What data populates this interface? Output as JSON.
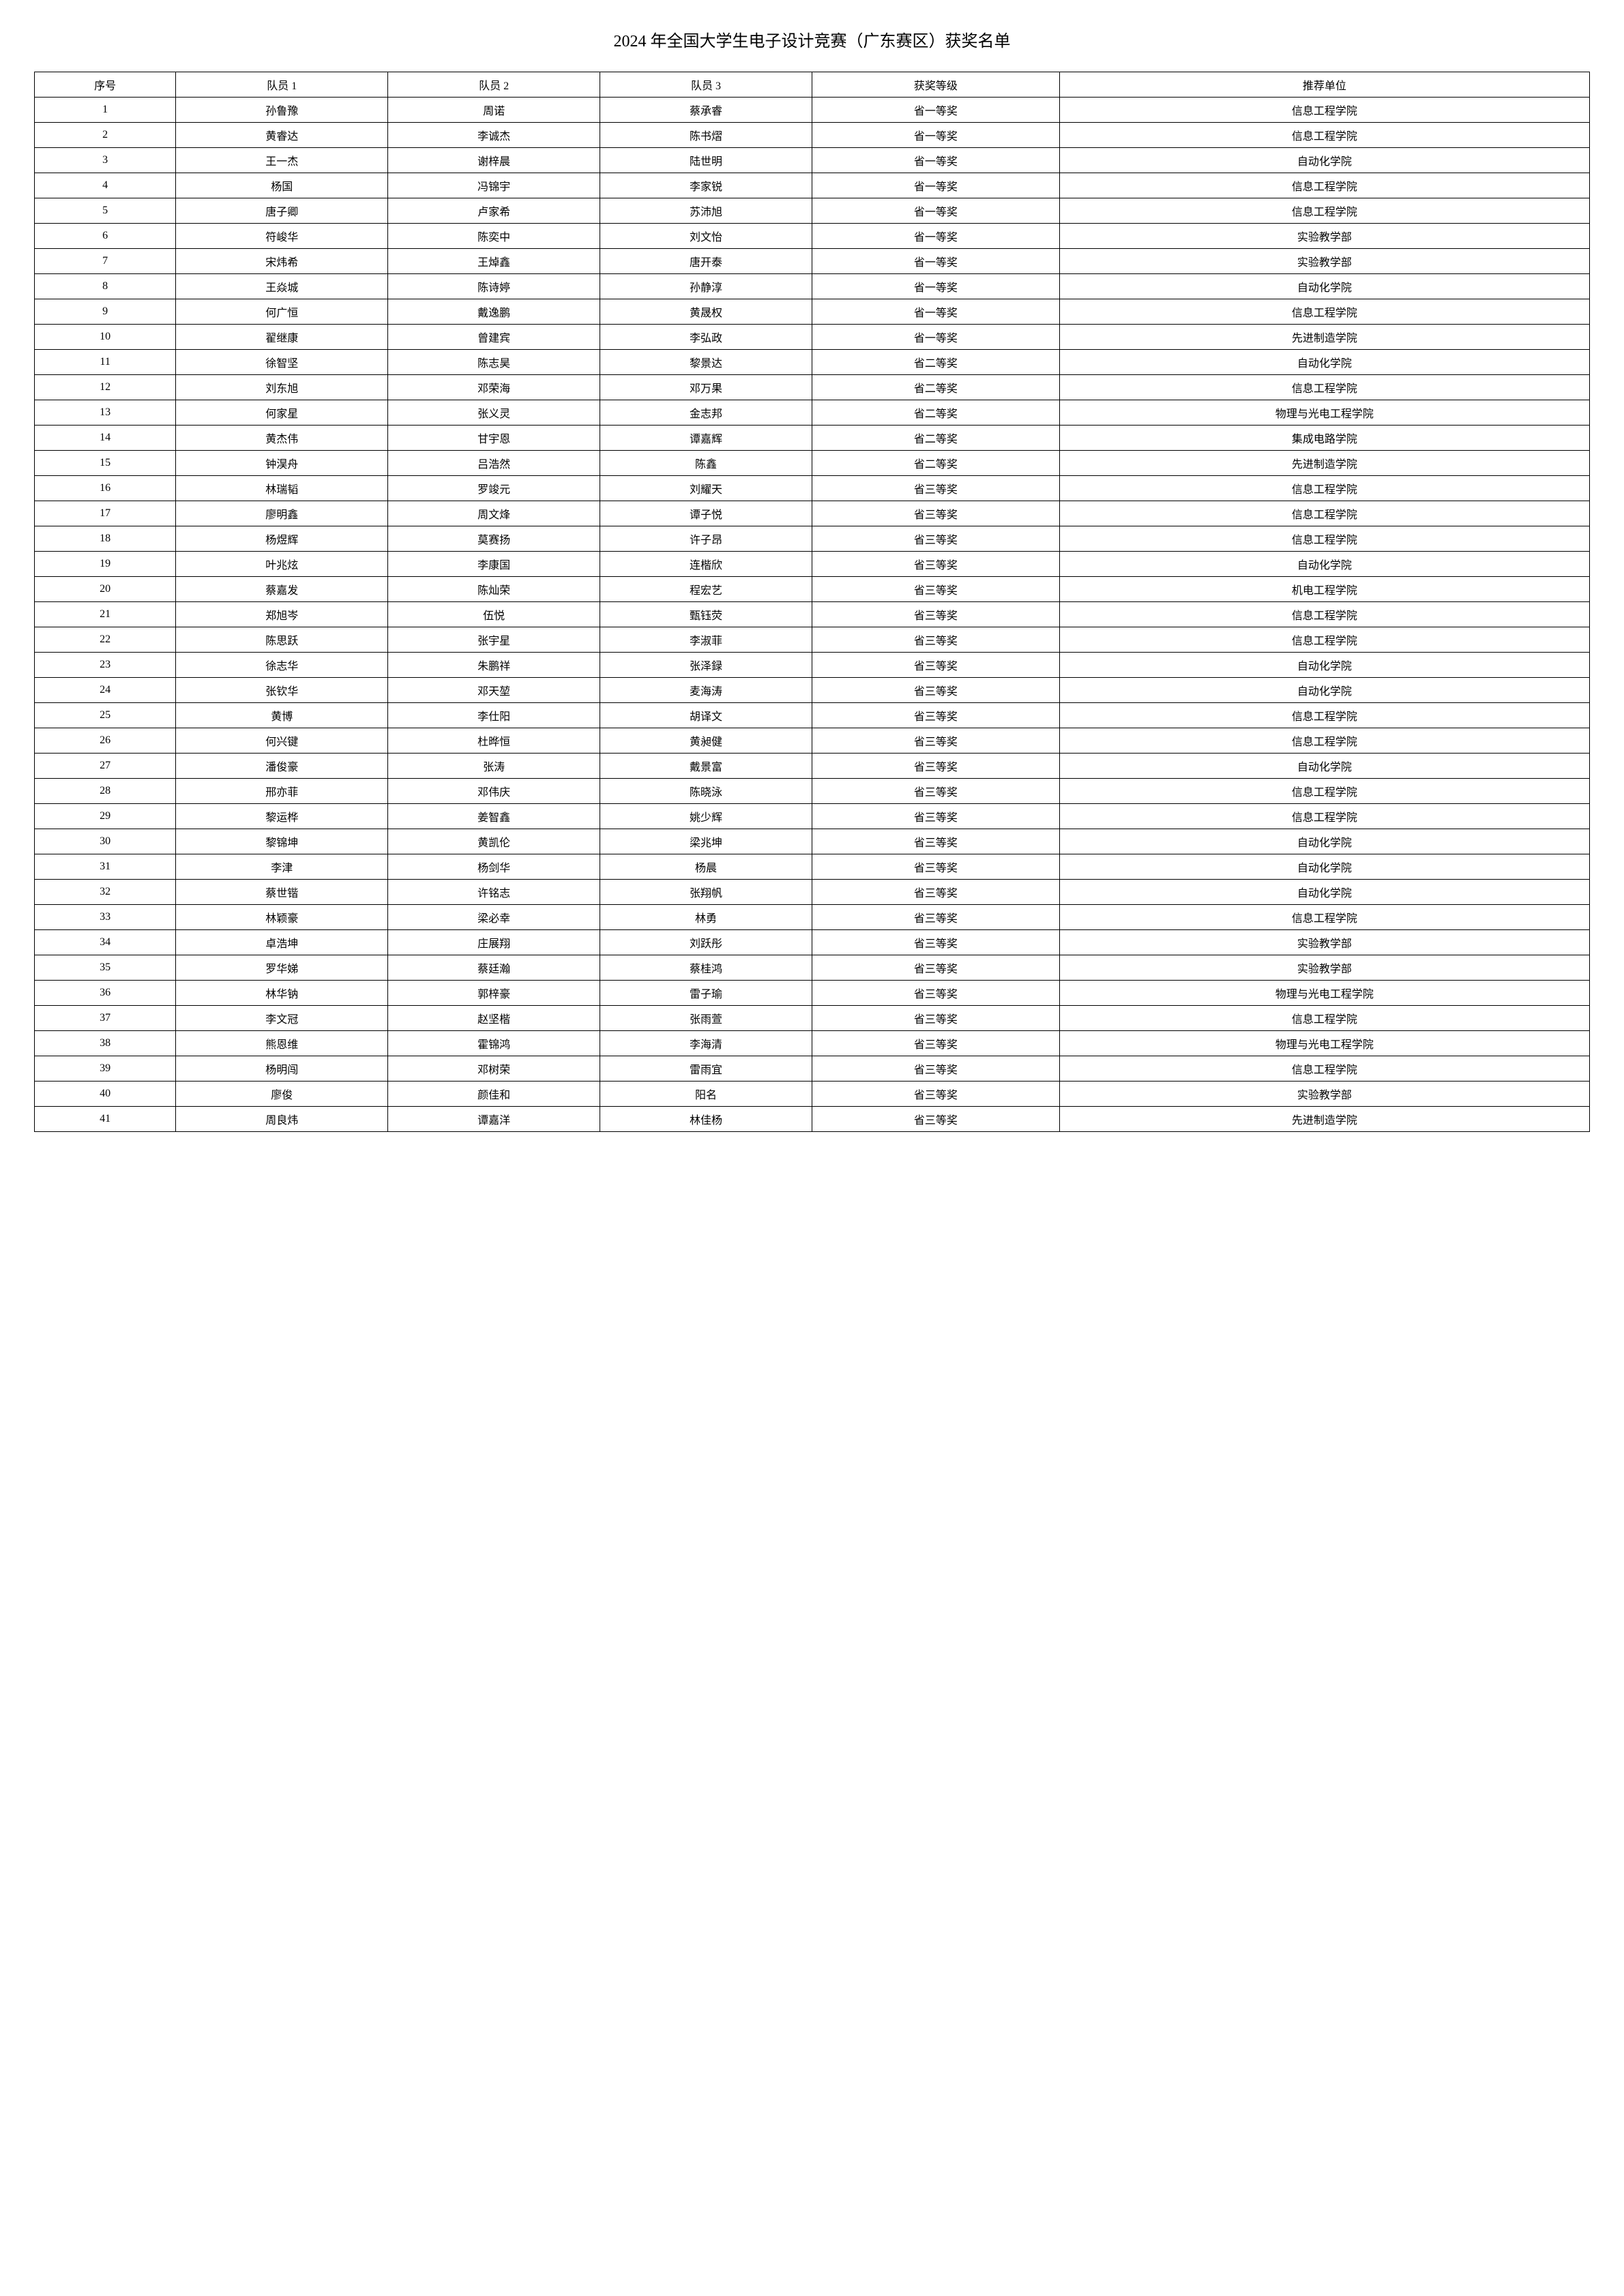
{
  "title": "2024 年全国大学生电子设计竞赛（广东赛区）获奖名单",
  "table": {
    "type": "table",
    "columns": [
      "序号",
      "队员 1",
      "队员 2",
      "队员 3",
      "获奖等级",
      "推荐单位"
    ],
    "rows": [
      [
        "1",
        "孙鲁豫",
        "周诺",
        "蔡承睿",
        "省一等奖",
        "信息工程学院"
      ],
      [
        "2",
        "黄睿达",
        "李诚杰",
        "陈书熠",
        "省一等奖",
        "信息工程学院"
      ],
      [
        "3",
        "王一杰",
        "谢梓晨",
        "陆世明",
        "省一等奖",
        "自动化学院"
      ],
      [
        "4",
        "杨国",
        "冯锦宇",
        "李家锐",
        "省一等奖",
        "信息工程学院"
      ],
      [
        "5",
        "唐子卿",
        "卢家希",
        "苏沛旭",
        "省一等奖",
        "信息工程学院"
      ],
      [
        "6",
        "符峻华",
        "陈奕中",
        "刘文怡",
        "省一等奖",
        "实验教学部"
      ],
      [
        "7",
        "宋炜希",
        "王焯鑫",
        "唐开泰",
        "省一等奖",
        "实验教学部"
      ],
      [
        "8",
        "王焱城",
        "陈诗婷",
        "孙静淳",
        "省一等奖",
        "自动化学院"
      ],
      [
        "9",
        "何广恒",
        "戴逸鹏",
        "黄晟权",
        "省一等奖",
        "信息工程学院"
      ],
      [
        "10",
        "翟继康",
        "曾建宾",
        "李弘政",
        "省一等奖",
        "先进制造学院"
      ],
      [
        "11",
        "徐智坚",
        "陈志昊",
        "黎景达",
        "省二等奖",
        "自动化学院"
      ],
      [
        "12",
        "刘东旭",
        "邓荣海",
        "邓万果",
        "省二等奖",
        "信息工程学院"
      ],
      [
        "13",
        "何家星",
        "张义灵",
        "金志邦",
        "省二等奖",
        "物理与光电工程学院"
      ],
      [
        "14",
        "黄杰伟",
        "甘宇恩",
        "谭嘉辉",
        "省二等奖",
        "集成电路学院"
      ],
      [
        "15",
        "钟淏舟",
        "吕浩然",
        "陈鑫",
        "省二等奖",
        "先进制造学院"
      ],
      [
        "16",
        "林瑞韬",
        "罗竣元",
        "刘耀天",
        "省三等奖",
        "信息工程学院"
      ],
      [
        "17",
        "廖明鑫",
        "周文烽",
        "谭子悦",
        "省三等奖",
        "信息工程学院"
      ],
      [
        "18",
        "杨煜辉",
        "莫赛扬",
        "许子昂",
        "省三等奖",
        "信息工程学院"
      ],
      [
        "19",
        "叶兆炫",
        "李康国",
        "连楷欣",
        "省三等奖",
        "自动化学院"
      ],
      [
        "20",
        "蔡嘉发",
        "陈灿荣",
        "程宏艺",
        "省三等奖",
        "机电工程学院"
      ],
      [
        "21",
        "郑旭岑",
        "伍悦",
        "甄钰荧",
        "省三等奖",
        "信息工程学院"
      ],
      [
        "22",
        "陈思跃",
        "张宇星",
        "李淑菲",
        "省三等奖",
        "信息工程学院"
      ],
      [
        "23",
        "徐志华",
        "朱鹏祥",
        "张泽録",
        "省三等奖",
        "自动化学院"
      ],
      [
        "24",
        "张钦华",
        "邓天堃",
        "麦海涛",
        "省三等奖",
        "自动化学院"
      ],
      [
        "25",
        "黄博",
        "李仕阳",
        "胡译文",
        "省三等奖",
        "信息工程学院"
      ],
      [
        "26",
        "何兴键",
        "杜晔恒",
        "黄昶健",
        "省三等奖",
        "信息工程学院"
      ],
      [
        "27",
        "潘俊豪",
        "张涛",
        "戴景富",
        "省三等奖",
        "自动化学院"
      ],
      [
        "28",
        "邢亦菲",
        "邓伟庆",
        "陈晓泳",
        "省三等奖",
        "信息工程学院"
      ],
      [
        "29",
        "黎运桦",
        "姜智鑫",
        "姚少辉",
        "省三等奖",
        "信息工程学院"
      ],
      [
        "30",
        "黎锦坤",
        "黄凯伦",
        "梁兆坤",
        "省三等奖",
        "自动化学院"
      ],
      [
        "31",
        "李津",
        "杨剑华",
        "杨晨",
        "省三等奖",
        "自动化学院"
      ],
      [
        "32",
        "蔡世锴",
        "许铭志",
        "张翔帆",
        "省三等奖",
        "自动化学院"
      ],
      [
        "33",
        "林颖豪",
        "梁必幸",
        "林勇",
        "省三等奖",
        "信息工程学院"
      ],
      [
        "34",
        "卓浩坤",
        "庄展翔",
        "刘跃彤",
        "省三等奖",
        "实验教学部"
      ],
      [
        "35",
        "罗华娣",
        "蔡廷瀚",
        "蔡桂鸿",
        "省三等奖",
        "实验教学部"
      ],
      [
        "36",
        "林华钠",
        "郭梓豪",
        "雷子瑜",
        "省三等奖",
        "物理与光电工程学院"
      ],
      [
        "37",
        "李文冠",
        "赵坚楷",
        "张雨萱",
        "省三等奖",
        "信息工程学院"
      ],
      [
        "38",
        "熊恩维",
        "霍锦鸿",
        "李海清",
        "省三等奖",
        "物理与光电工程学院"
      ],
      [
        "39",
        "杨明闯",
        "邓树荣",
        "雷雨宜",
        "省三等奖",
        "信息工程学院"
      ],
      [
        "40",
        "廖俊",
        "颜佳和",
        "阳名",
        "省三等奖",
        "实验教学部"
      ],
      [
        "41",
        "周良炜",
        "谭嘉洋",
        "林佳杨",
        "省三等奖",
        "先进制造学院"
      ]
    ],
    "border_color": "#000000",
    "background_color": "#ffffff",
    "text_color": "#000000",
    "font_size": 16
  }
}
